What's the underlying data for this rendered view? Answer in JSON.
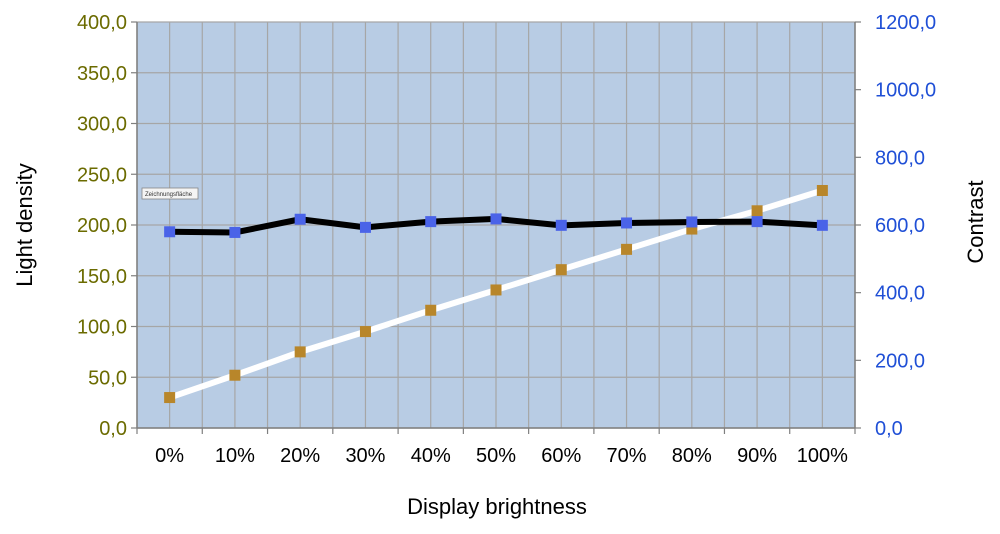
{
  "chart_data": {
    "type": "line",
    "categories": [
      "0%",
      "10%",
      "20%",
      "30%",
      "40%",
      "50%",
      "60%",
      "70%",
      "80%",
      "90%",
      "100%"
    ],
    "xlabel": "Display brightness",
    "ylabel_left": "Light density",
    "ylabel_right": "Contrast",
    "ylim_left": [
      0,
      400
    ],
    "ylim_right": [
      0,
      1200
    ],
    "yticks_left": [
      "0,0",
      "50,0",
      "100,0",
      "150,0",
      "200,0",
      "250,0",
      "300,0",
      "350,0",
      "400,0"
    ],
    "yticks_right": [
      "0,0",
      "200,0",
      "400,0",
      "600,0",
      "800,0",
      "1000,0",
      "1200,0"
    ],
    "grid": true,
    "background": "#b8cce4",
    "series": [
      {
        "axis": "right",
        "line_color": "#000000",
        "marker_color": "#4a63e8",
        "values": [
          580,
          578,
          617,
          593,
          610,
          618,
          599,
          606,
          609,
          610,
          599
        ]
      },
      {
        "axis": "left",
        "line_color": "#ffffff",
        "marker_color": "#b8862a",
        "values": [
          30,
          52,
          75,
          95,
          116,
          136,
          156,
          176,
          196,
          214,
          234
        ]
      }
    ],
    "tooltip": "Zeichnungsfläche",
    "colors": {
      "left_axis": "#6b6b00",
      "right_axis": "#1f4fd6",
      "grid": "#a6a6a6"
    }
  }
}
